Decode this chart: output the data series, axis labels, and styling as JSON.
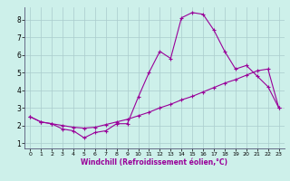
{
  "xlabel": "Windchill (Refroidissement éolien,°C)",
  "background_color": "#cdf0ea",
  "grid_color": "#aacccc",
  "line_color": "#990099",
  "x_values": [
    0,
    1,
    2,
    3,
    4,
    5,
    6,
    7,
    8,
    9,
    10,
    11,
    12,
    13,
    14,
    15,
    16,
    17,
    18,
    19,
    20,
    21,
    22,
    23
  ],
  "line1_y": [
    2.5,
    2.2,
    2.1,
    1.8,
    1.7,
    1.3,
    1.6,
    1.7,
    2.1,
    2.1,
    3.6,
    5.0,
    6.2,
    5.8,
    8.1,
    8.4,
    8.3,
    7.4,
    6.2,
    5.2,
    5.4,
    4.8,
    4.2,
    3.0
  ],
  "line2_y": [
    2.5,
    2.2,
    2.1,
    2.0,
    1.9,
    1.85,
    1.9,
    2.05,
    2.2,
    2.35,
    2.55,
    2.75,
    3.0,
    3.2,
    3.45,
    3.65,
    3.9,
    4.15,
    4.4,
    4.6,
    4.85,
    5.1,
    5.2,
    3.0
  ],
  "xlim": [
    -0.5,
    23.5
  ],
  "ylim": [
    0.7,
    8.7
  ],
  "yticks": [
    1,
    2,
    3,
    4,
    5,
    6,
    7,
    8
  ],
  "xticks": [
    0,
    1,
    2,
    3,
    4,
    5,
    6,
    7,
    8,
    9,
    10,
    11,
    12,
    13,
    14,
    15,
    16,
    17,
    18,
    19,
    20,
    21,
    22,
    23
  ]
}
